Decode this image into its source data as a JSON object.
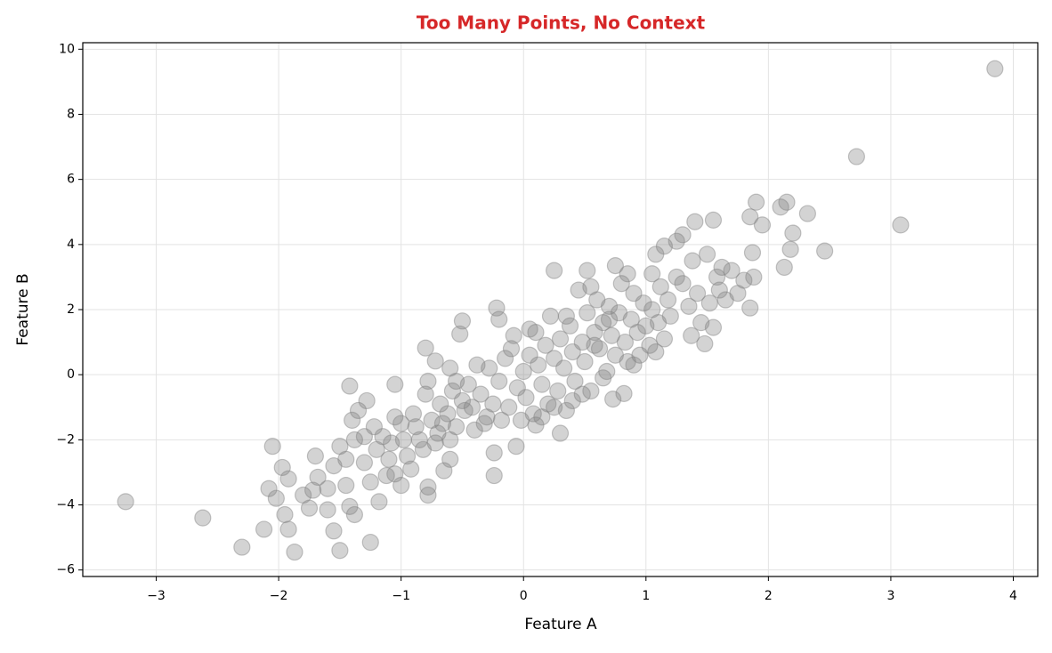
{
  "chart_data": {
    "type": "scatter",
    "title": "Too Many Points, No Context",
    "title_color": "#d62728",
    "x_label": "Feature A",
    "y_label": "Feature B",
    "color": "#808080",
    "grid": true,
    "xlim": [
      -3.6,
      4.2
    ],
    "ylim": [
      -6.2,
      10.2
    ],
    "xticks": [
      {
        "value": -3,
        "label": "−3"
      },
      {
        "value": -2,
        "label": "−2"
      },
      {
        "value": -1,
        "label": "−1"
      },
      0,
      1,
      2,
      3,
      4
    ],
    "yticks": [
      {
        "value": -6,
        "label": "−6"
      },
      {
        "value": -4,
        "label": "−4"
      },
      {
        "value": -2,
        "label": "−2"
      },
      0,
      2,
      4,
      6,
      8,
      10
    ],
    "x": [
      -3.25,
      -2.62,
      -2.3,
      -2.12,
      -2.05,
      -2.08,
      -2.02,
      -1.97,
      -1.92,
      -1.95,
      -1.92,
      -1.87,
      -1.75,
      -1.72,
      -1.68,
      -1.6,
      -1.55,
      -1.5,
      -1.45,
      -1.42,
      -1.38,
      -1.25,
      -1.18,
      3.85,
      2.72,
      3.08,
      2.46,
      2.32,
      2.15,
      2.1,
      1.9,
      1.85,
      1.95,
      2.2,
      2.18,
      2.13,
      1.87,
      1.88,
      1.85,
      1.55,
      1.4,
      1.3,
      1.25,
      1.48,
      1.37,
      0.73,
      0.82,
      0.3,
      0.1,
      -0.06,
      -0.24,
      -0.24,
      -0.6,
      -0.65,
      -0.78,
      -0.78,
      -1.0,
      -1.05,
      -0.52,
      -0.5,
      -0.8,
      -0.72,
      -0.6,
      -1.42,
      -1.28,
      -1.05,
      -0.22,
      -0.2,
      0.25,
      0.52,
      0.75,
      0.85,
      1.08,
      1.15,
      1.05,
      -1.3,
      -1.2,
      -1.1,
      -1.0,
      -0.95,
      -0.9,
      -0.85,
      -0.8,
      -0.75,
      -0.7,
      -0.68,
      -0.62,
      -0.58,
      -0.55,
      -0.5,
      -0.48,
      -0.45,
      -0.4,
      -0.35,
      -0.3,
      -0.28,
      -0.25,
      -0.2,
      -0.15,
      -0.12,
      -0.1,
      -0.05,
      0,
      0.02,
      0.05,
      0.08,
      0.1,
      0.12,
      0.15,
      0.18,
      0.2,
      0.22,
      0.25,
      0.28,
      0.3,
      0.33,
      0.35,
      0.38,
      0.4,
      0.42,
      0.45,
      0.48,
      0.5,
      0.52,
      0.55,
      0.58,
      0.6,
      0.62,
      0.65,
      0.68,
      0.7,
      0.72,
      0.75,
      0.78,
      0.8,
      0.83,
      0.85,
      0.88,
      0.9,
      0.93,
      0.95,
      0.98,
      1.0,
      1.03,
      1.05,
      1.1,
      1.12,
      1.15,
      1.18,
      1.2,
      1.25,
      1.3,
      1.35,
      1.38,
      1.42,
      1.45,
      1.5,
      1.52,
      1.55,
      1.58,
      1.6,
      1.62,
      1.65,
      1.7,
      1.75,
      1.8,
      -1.55,
      -1.5,
      -1.45,
      -1.4,
      -1.38,
      -1.35,
      -1.3,
      -1.25,
      -1.22,
      -1.15,
      -1.12,
      -1.08,
      -1.05,
      -0.98,
      -0.92,
      -0.88,
      -0.82,
      -0.78,
      -0.72,
      -0.66,
      -0.6,
      -0.55,
      -0.42,
      -0.38,
      -0.32,
      -0.18,
      -0.08,
      -0.02,
      0.05,
      0.15,
      0.25,
      0.35,
      0.4,
      0.55,
      0.65,
      0.7,
      0.9,
      1.08,
      0.58,
      0.48,
      -1.7,
      -1.6,
      -1.8
    ],
    "values": [
      -3.9,
      -4.4,
      -5.3,
      -4.75,
      -2.2,
      -3.5,
      -3.8,
      -2.85,
      -3.2,
      -4.3,
      -4.75,
      -5.45,
      -4.1,
      -3.55,
      -3.15,
      -4.15,
      -4.8,
      -5.4,
      -3.4,
      -4.05,
      -4.3,
      -5.15,
      -3.9,
      9.4,
      6.7,
      4.6,
      3.8,
      4.95,
      5.3,
      5.15,
      5.3,
      4.85,
      4.6,
      4.35,
      3.85,
      3.3,
      3.75,
      3.0,
      2.05,
      4.75,
      4.7,
      4.3,
      4.1,
      0.95,
      1.2,
      -0.75,
      -0.58,
      -1.8,
      -1.55,
      -2.2,
      -3.1,
      -2.4,
      -2.6,
      -2.95,
      -3.7,
      -3.45,
      -3.4,
      -3.05,
      1.25,
      1.65,
      0.82,
      0.42,
      0.2,
      -0.35,
      -0.8,
      -0.3,
      2.05,
      1.7,
      3.2,
      3.2,
      3.35,
      3.1,
      3.7,
      3.95,
      3.1,
      -1.9,
      -2.3,
      -2.6,
      -1.5,
      -2.5,
      -1.2,
      -2.0,
      -0.6,
      -1.4,
      -1.8,
      -0.9,
      -1.2,
      -0.5,
      -1.6,
      -0.8,
      -1.1,
      -0.3,
      -1.7,
      -0.6,
      -1.3,
      0.2,
      -0.9,
      -0.2,
      0.5,
      -1.0,
      0.8,
      -0.4,
      0.1,
      -0.7,
      0.6,
      -1.2,
      1.3,
      0.3,
      -0.3,
      0.9,
      -0.9,
      1.8,
      0.5,
      -0.5,
      1.1,
      0.2,
      -1.1,
      1.5,
      0.7,
      -0.2,
      2.6,
      1.0,
      0.4,
      1.9,
      -0.5,
      1.3,
      2.3,
      0.8,
      1.6,
      0.1,
      2.1,
      1.2,
      0.6,
      1.9,
      2.8,
      1.0,
      0.4,
      1.7,
      2.5,
      1.3,
      0.6,
      2.2,
      1.5,
      0.9,
      2.0,
      1.6,
      2.7,
      1.1,
      2.3,
      1.8,
      3.0,
      2.8,
      2.1,
      3.5,
      2.5,
      1.6,
      3.7,
      2.2,
      1.45,
      3.0,
      2.6,
      3.3,
      2.3,
      3.2,
      2.5,
      2.9,
      -2.8,
      -2.2,
      -2.6,
      -1.4,
      -2.0,
      -1.1,
      -2.7,
      -3.3,
      -1.6,
      -1.9,
      -3.1,
      -2.1,
      -1.3,
      -2.0,
      -2.9,
      -1.6,
      -2.3,
      -0.2,
      -2.1,
      -1.5,
      -2.0,
      -0.2,
      -1.0,
      0.3,
      -1.5,
      -1.4,
      1.2,
      -1.4,
      1.4,
      -1.3,
      -1.0,
      1.8,
      -0.8,
      2.7,
      -0.1,
      1.7,
      0.3,
      0.7,
      0.9,
      -0.6,
      -2.5,
      -3.5,
      -3.7
    ]
  }
}
